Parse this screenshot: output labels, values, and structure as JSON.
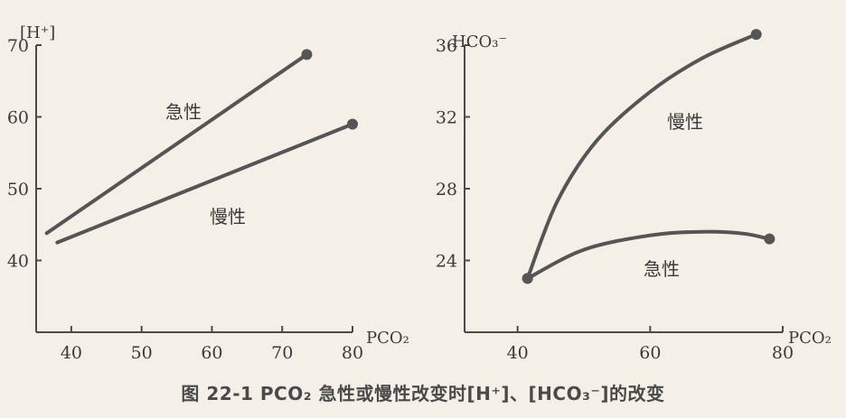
{
  "caption": "图 22-1 PCO₂ 急性或慢性改变时[H⁺]、[HCO₃⁻]的改变",
  "chart_data": [
    {
      "type": "line",
      "ylabel": "[H⁺]",
      "xlabel": "PCO₂",
      "xlim": [
        35,
        80
      ],
      "ylim": [
        30,
        70
      ],
      "xticks": [
        "40",
        "50",
        "60",
        "70",
        "80"
      ],
      "yticks": [
        "40",
        "50",
        "60",
        "70"
      ],
      "grid": false,
      "series": [
        {
          "name": "急性",
          "points": [
            [
              36.5,
              43.8
            ],
            [
              73.5,
              68.7
            ]
          ],
          "end_marker": true
        },
        {
          "name": "慢性",
          "points": [
            [
              38,
              42.5
            ],
            [
              80,
              59
            ]
          ],
          "end_marker": true
        }
      ]
    },
    {
      "type": "line",
      "ylabel": "HCO₃⁻",
      "xlabel": "PCO₂",
      "xlim": [
        32,
        80
      ],
      "ylim": [
        20,
        36
      ],
      "xticks": [
        "40",
        "60",
        "80"
      ],
      "yticks": [
        "24",
        "28",
        "32",
        "36"
      ],
      "grid": false,
      "series": [
        {
          "name": "慢性",
          "points": [
            [
              41.5,
              23
            ],
            [
              46,
              27.3
            ],
            [
              52,
              30.7
            ],
            [
              60,
              33.4
            ],
            [
              68,
              35.3
            ],
            [
              76,
              36.6
            ]
          ],
          "start_marker": true,
          "end_marker": true
        },
        {
          "name": "急性",
          "points": [
            [
              41.5,
              23
            ],
            [
              50,
              24.6
            ],
            [
              60,
              25.4
            ],
            [
              68,
              25.6
            ],
            [
              74,
              25.5
            ],
            [
              78,
              25.2
            ]
          ],
          "start_marker": true,
          "end_marker": true
        }
      ]
    }
  ]
}
